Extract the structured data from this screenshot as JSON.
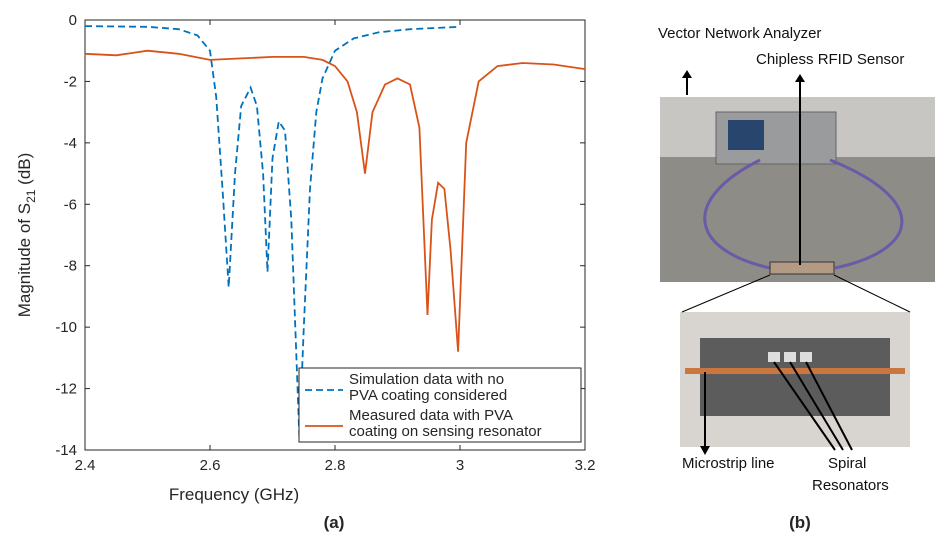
{
  "chart_data": {
    "type": "line",
    "xlabel": "Frequency (GHz)",
    "ylabel": {
      "text": "Magnitude of S",
      "subscript": "21",
      "suffix": " (dB)"
    },
    "xlim": [
      2.4,
      3.2
    ],
    "xticks": [
      2.4,
      2.6,
      2.8,
      3,
      3.2
    ],
    "ylim": [
      -14,
      0
    ],
    "yticks": [
      0,
      -2,
      -4,
      -6,
      -8,
      -10,
      -12,
      -14
    ],
    "legend": "lower right",
    "series": [
      {
        "name": "Simulation data with no\nPVA coating considered",
        "color": "#0072bd",
        "dash": true,
        "x": [
          2.4,
          2.5,
          2.55,
          2.58,
          2.6,
          2.61,
          2.62,
          2.63,
          2.64,
          2.65,
          2.665,
          2.675,
          2.685,
          2.692,
          2.7,
          2.71,
          2.72,
          2.73,
          2.743,
          2.75,
          2.76,
          2.77,
          2.78,
          2.8,
          2.83,
          2.87,
          2.92,
          3.0
        ],
        "values": [
          -0.2,
          -0.22,
          -0.3,
          -0.5,
          -1.0,
          -2.5,
          -5.5,
          -8.7,
          -5.0,
          -2.8,
          -2.2,
          -2.8,
          -5.0,
          -8.2,
          -4.5,
          -3.3,
          -3.6,
          -6.5,
          -13.6,
          -10.0,
          -5.5,
          -3.0,
          -1.9,
          -1.0,
          -0.6,
          -0.4,
          -0.3,
          -0.22
        ]
      },
      {
        "name": "Measured data with PVA\ncoating on sensing resonator",
        "color": "#d95319",
        "dash": false,
        "x": [
          2.4,
          2.45,
          2.5,
          2.55,
          2.6,
          2.65,
          2.7,
          2.75,
          2.78,
          2.8,
          2.82,
          2.835,
          2.848,
          2.86,
          2.88,
          2.9,
          2.92,
          2.935,
          2.948,
          2.955,
          2.965,
          2.975,
          2.985,
          2.997,
          3.01,
          3.03,
          3.06,
          3.1,
          3.15,
          3.2
        ],
        "values": [
          -1.1,
          -1.15,
          -1.0,
          -1.1,
          -1.3,
          -1.25,
          -1.2,
          -1.2,
          -1.3,
          -1.5,
          -2.0,
          -3.0,
          -5.0,
          -3.0,
          -2.1,
          -1.9,
          -2.1,
          -3.5,
          -9.6,
          -6.5,
          -5.3,
          -5.5,
          -7.5,
          -10.8,
          -4.0,
          -2.0,
          -1.5,
          -1.4,
          -1.45,
          -1.6
        ]
      }
    ]
  },
  "captions": [
    "(a)",
    "(b)"
  ],
  "panel_b": {
    "vna": "Vector Network Analyzer",
    "sensor": "Chipless RFID Sensor",
    "microstrip": "Microstrip line",
    "spiral": [
      "Spiral",
      "Resonators"
    ]
  }
}
